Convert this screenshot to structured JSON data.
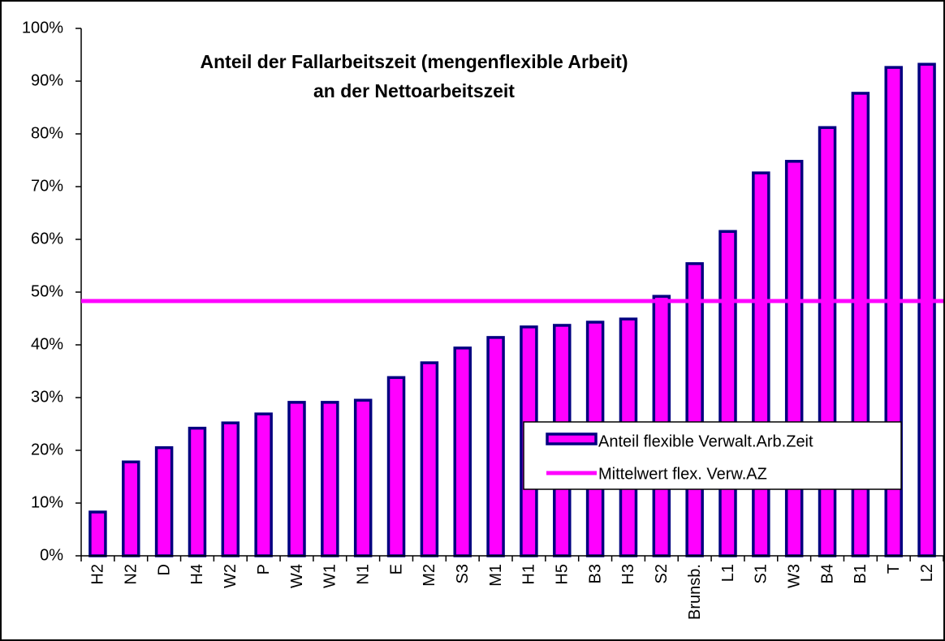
{
  "chart_data": {
    "type": "bar",
    "title_lines": [
      "Anteil der Fallarbeitszeit (mengenflexible Arbeit)",
      "an der Nettoarbeitszeit"
    ],
    "categories": [
      "H2",
      "N2",
      "D",
      "H4",
      "W2",
      "P",
      "W4",
      "W1",
      "N1",
      "E",
      "M2",
      "S3",
      "M1",
      "H1",
      "H5",
      "B3",
      "H3",
      "S2",
      "Brunsb.",
      "L1",
      "S1",
      "W3",
      "B4",
      "B1",
      "T",
      "L2"
    ],
    "series": [
      {
        "name": "Anteil flexible Verwalt.Arb.Zeit",
        "color": "#ff00ff",
        "edge_color": "#000080",
        "values": [
          8.3,
          17.8,
          20.5,
          24.2,
          25.2,
          26.9,
          29.1,
          29.1,
          29.5,
          33.8,
          36.6,
          39.4,
          41.4,
          43.4,
          43.7,
          44.3,
          44.9,
          49.2,
          55.4,
          61.5,
          72.6,
          74.8,
          81.2,
          87.7,
          92.6,
          93.2
        ]
      }
    ],
    "mean_line": {
      "name": "Mittelwert flex. Verw.AZ",
      "color": "#ff00ff",
      "value": 48.3
    },
    "ylim": [
      0,
      100
    ],
    "yticks": [
      {
        "value": 0,
        "label": "0%"
      },
      {
        "value": 10,
        "label": "10%"
      },
      {
        "value": 20,
        "label": "20%"
      },
      {
        "value": 30,
        "label": "30%"
      },
      {
        "value": 40,
        "label": "40%"
      },
      {
        "value": 50,
        "label": "50%"
      },
      {
        "value": 60,
        "label": "60%"
      },
      {
        "value": 70,
        "label": "70%"
      },
      {
        "value": 80,
        "label": "80%"
      },
      {
        "value": 90,
        "label": "90%"
      },
      {
        "value": 100,
        "label": "100%"
      }
    ],
    "grid": false
  }
}
